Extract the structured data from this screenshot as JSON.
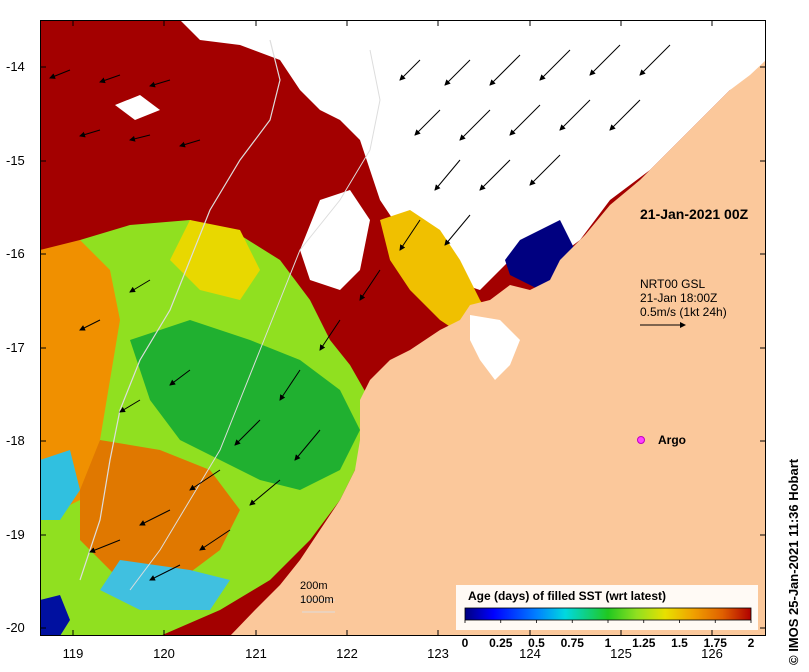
{
  "map": {
    "credit": "© IMOS 25-Jan-2021 11:36 Hobart",
    "date_label": "21-Jan-2021 00Z",
    "current": {
      "source": "NRT00 GSL",
      "time": "21-Jan 18:00Z",
      "scale": "0.5m/s (1kt 24h)"
    },
    "argo_label": "Argo",
    "contours": {
      "c200": "200m",
      "c1000": "1000m"
    },
    "colorbar": {
      "title": "Age (days) of filled SST (wrt latest)",
      "ticks": [
        "0",
        "0.25",
        "0.5",
        "0.75",
        "1",
        "1.25",
        "1.5",
        "1.75",
        "2"
      ],
      "colors": [
        "#00007f",
        "#0000ff",
        "#0080ff",
        "#00d8e0",
        "#20c820",
        "#90e020",
        "#e8e000",
        "#f0a000",
        "#e06000",
        "#b00000"
      ]
    },
    "lat_ticks": [
      "-14",
      "-15",
      "-16",
      "-17",
      "-18",
      "-19",
      "-20"
    ],
    "lon_ticks": [
      "119",
      "120",
      "121",
      "122",
      "123",
      "124",
      "125",
      "126"
    ],
    "colors": {
      "land": "#fbc89b",
      "cloud": "#ffffff",
      "old_sst": "#a30000"
    }
  }
}
